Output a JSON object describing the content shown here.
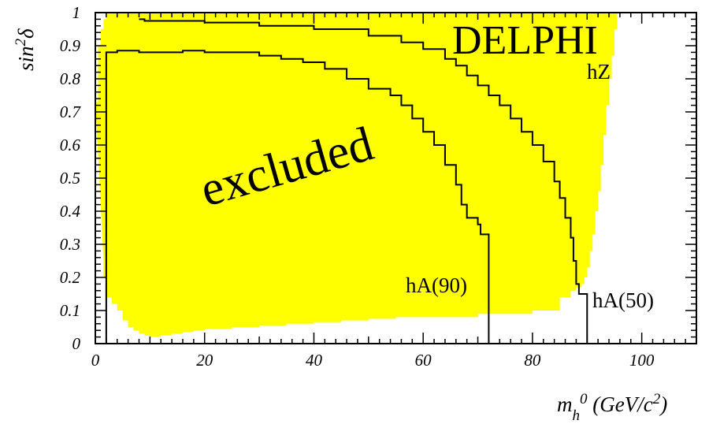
{
  "chart_data": {
    "type": "area",
    "title": "DELPHI",
    "channel_label": "hZ",
    "region_label": "excluded",
    "xlabel": "m_h^0 (GeV/c^2)",
    "ylabel": "sin^2 δ",
    "xlim": [
      0,
      110
    ],
    "ylim": [
      0,
      1
    ],
    "x_ticks": [
      0,
      20,
      40,
      60,
      80,
      100
    ],
    "y_ticks": [
      0,
      0.1,
      0.2,
      0.3,
      0.4,
      0.5,
      0.6,
      0.7,
      0.8,
      0.9,
      1
    ],
    "x_tick_labels": [
      "0",
      "20",
      "40",
      "60",
      "80",
      "100"
    ],
    "y_tick_labels": [
      "0",
      "0.1",
      "0.2",
      "0.3",
      "0.4",
      "0.5",
      "0.6",
      "0.7",
      "0.8",
      "0.9",
      "1"
    ],
    "grid": false,
    "colors": {
      "excluded_fill": "#ffff00",
      "lines": "#000000",
      "background": "#ffffff"
    },
    "series": [
      {
        "name": "hZ",
        "kind": "excluded-region",
        "upper": [
          [
            0,
            0.73
          ],
          [
            0.5,
            0.9
          ],
          [
            1,
            0.95
          ],
          [
            1.5,
            0.98
          ],
          [
            2,
            1
          ],
          [
            108,
            1
          ]
        ],
        "right_edge": [
          [
            96,
            1
          ],
          [
            95.5,
            0.95
          ],
          [
            95,
            0.87
          ],
          [
            94.5,
            0.8
          ],
          [
            94,
            0.72
          ],
          [
            93.5,
            0.63
          ],
          [
            93,
            0.54
          ],
          [
            92.5,
            0.46
          ],
          [
            92,
            0.4
          ],
          [
            91.5,
            0.33
          ],
          [
            91,
            0.28
          ],
          [
            90.5,
            0.23
          ],
          [
            90,
            0.2
          ],
          [
            89.5,
            0.18
          ],
          [
            89,
            0.17
          ],
          [
            88,
            0.16
          ],
          [
            87,
            0.14
          ]
        ],
        "lower": [
          [
            1.5,
            0.25
          ],
          [
            2,
            0.2
          ],
          [
            3,
            0.14
          ],
          [
            4,
            0.12
          ],
          [
            5,
            0.1
          ],
          [
            6,
            0.07
          ],
          [
            7,
            0.05
          ],
          [
            8,
            0.04
          ],
          [
            9,
            0.03
          ],
          [
            10,
            0.025
          ],
          [
            12,
            0.02
          ],
          [
            14,
            0.025
          ],
          [
            16,
            0.03
          ],
          [
            18,
            0.035
          ],
          [
            20,
            0.04
          ],
          [
            25,
            0.045
          ],
          [
            30,
            0.05
          ],
          [
            35,
            0.055
          ],
          [
            40,
            0.06
          ],
          [
            45,
            0.065
          ],
          [
            50,
            0.07
          ],
          [
            55,
            0.075
          ],
          [
            60,
            0.08
          ],
          [
            65,
            0.08
          ],
          [
            70,
            0.08
          ],
          [
            75,
            0.09
          ],
          [
            80,
            0.09
          ],
          [
            85,
            0.1
          ],
          [
            87,
            0.14
          ]
        ]
      },
      {
        "name": "hA(50)",
        "kind": "step-line",
        "points": [
          [
            8,
            0.98
          ],
          [
            9,
            0.975
          ],
          [
            20,
            0.97
          ],
          [
            30,
            0.96
          ],
          [
            40,
            0.95
          ],
          [
            50,
            0.93
          ],
          [
            56,
            0.91
          ],
          [
            60,
            0.89
          ],
          [
            64,
            0.86
          ],
          [
            66,
            0.84
          ],
          [
            68,
            0.81
          ],
          [
            70,
            0.78
          ],
          [
            72,
            0.75
          ],
          [
            74,
            0.72
          ],
          [
            76,
            0.68
          ],
          [
            78,
            0.64
          ],
          [
            80,
            0.6
          ],
          [
            82,
            0.55
          ],
          [
            84,
            0.49
          ],
          [
            85,
            0.44
          ],
          [
            86,
            0.38
          ],
          [
            87,
            0.32
          ],
          [
            87.5,
            0.25
          ],
          [
            88,
            0.18
          ],
          [
            88.5,
            0.15
          ],
          [
            90,
            0.15
          ],
          [
            90,
            0
          ]
        ]
      },
      {
        "name": "hA(90)",
        "kind": "step-line",
        "points": [
          [
            2,
            0
          ],
          [
            2,
            0.88
          ],
          [
            4,
            0.885
          ],
          [
            8,
            0.88
          ],
          [
            12,
            0.88
          ],
          [
            16,
            0.885
          ],
          [
            20,
            0.88
          ],
          [
            26,
            0.88
          ],
          [
            30,
            0.87
          ],
          [
            34,
            0.86
          ],
          [
            38,
            0.85
          ],
          [
            42,
            0.83
          ],
          [
            46,
            0.8
          ],
          [
            50,
            0.77
          ],
          [
            54,
            0.75
          ],
          [
            56,
            0.72
          ],
          [
            58,
            0.68
          ],
          [
            60,
            0.64
          ],
          [
            62,
            0.6
          ],
          [
            64,
            0.54
          ],
          [
            66,
            0.48
          ],
          [
            67,
            0.42
          ],
          [
            68,
            0.38
          ],
          [
            70,
            0.36
          ],
          [
            70.5,
            0.33
          ],
          [
            72,
            0.33
          ],
          [
            72,
            0
          ]
        ]
      }
    ],
    "annotations": [
      "hA(90)",
      "hA(50)"
    ]
  }
}
